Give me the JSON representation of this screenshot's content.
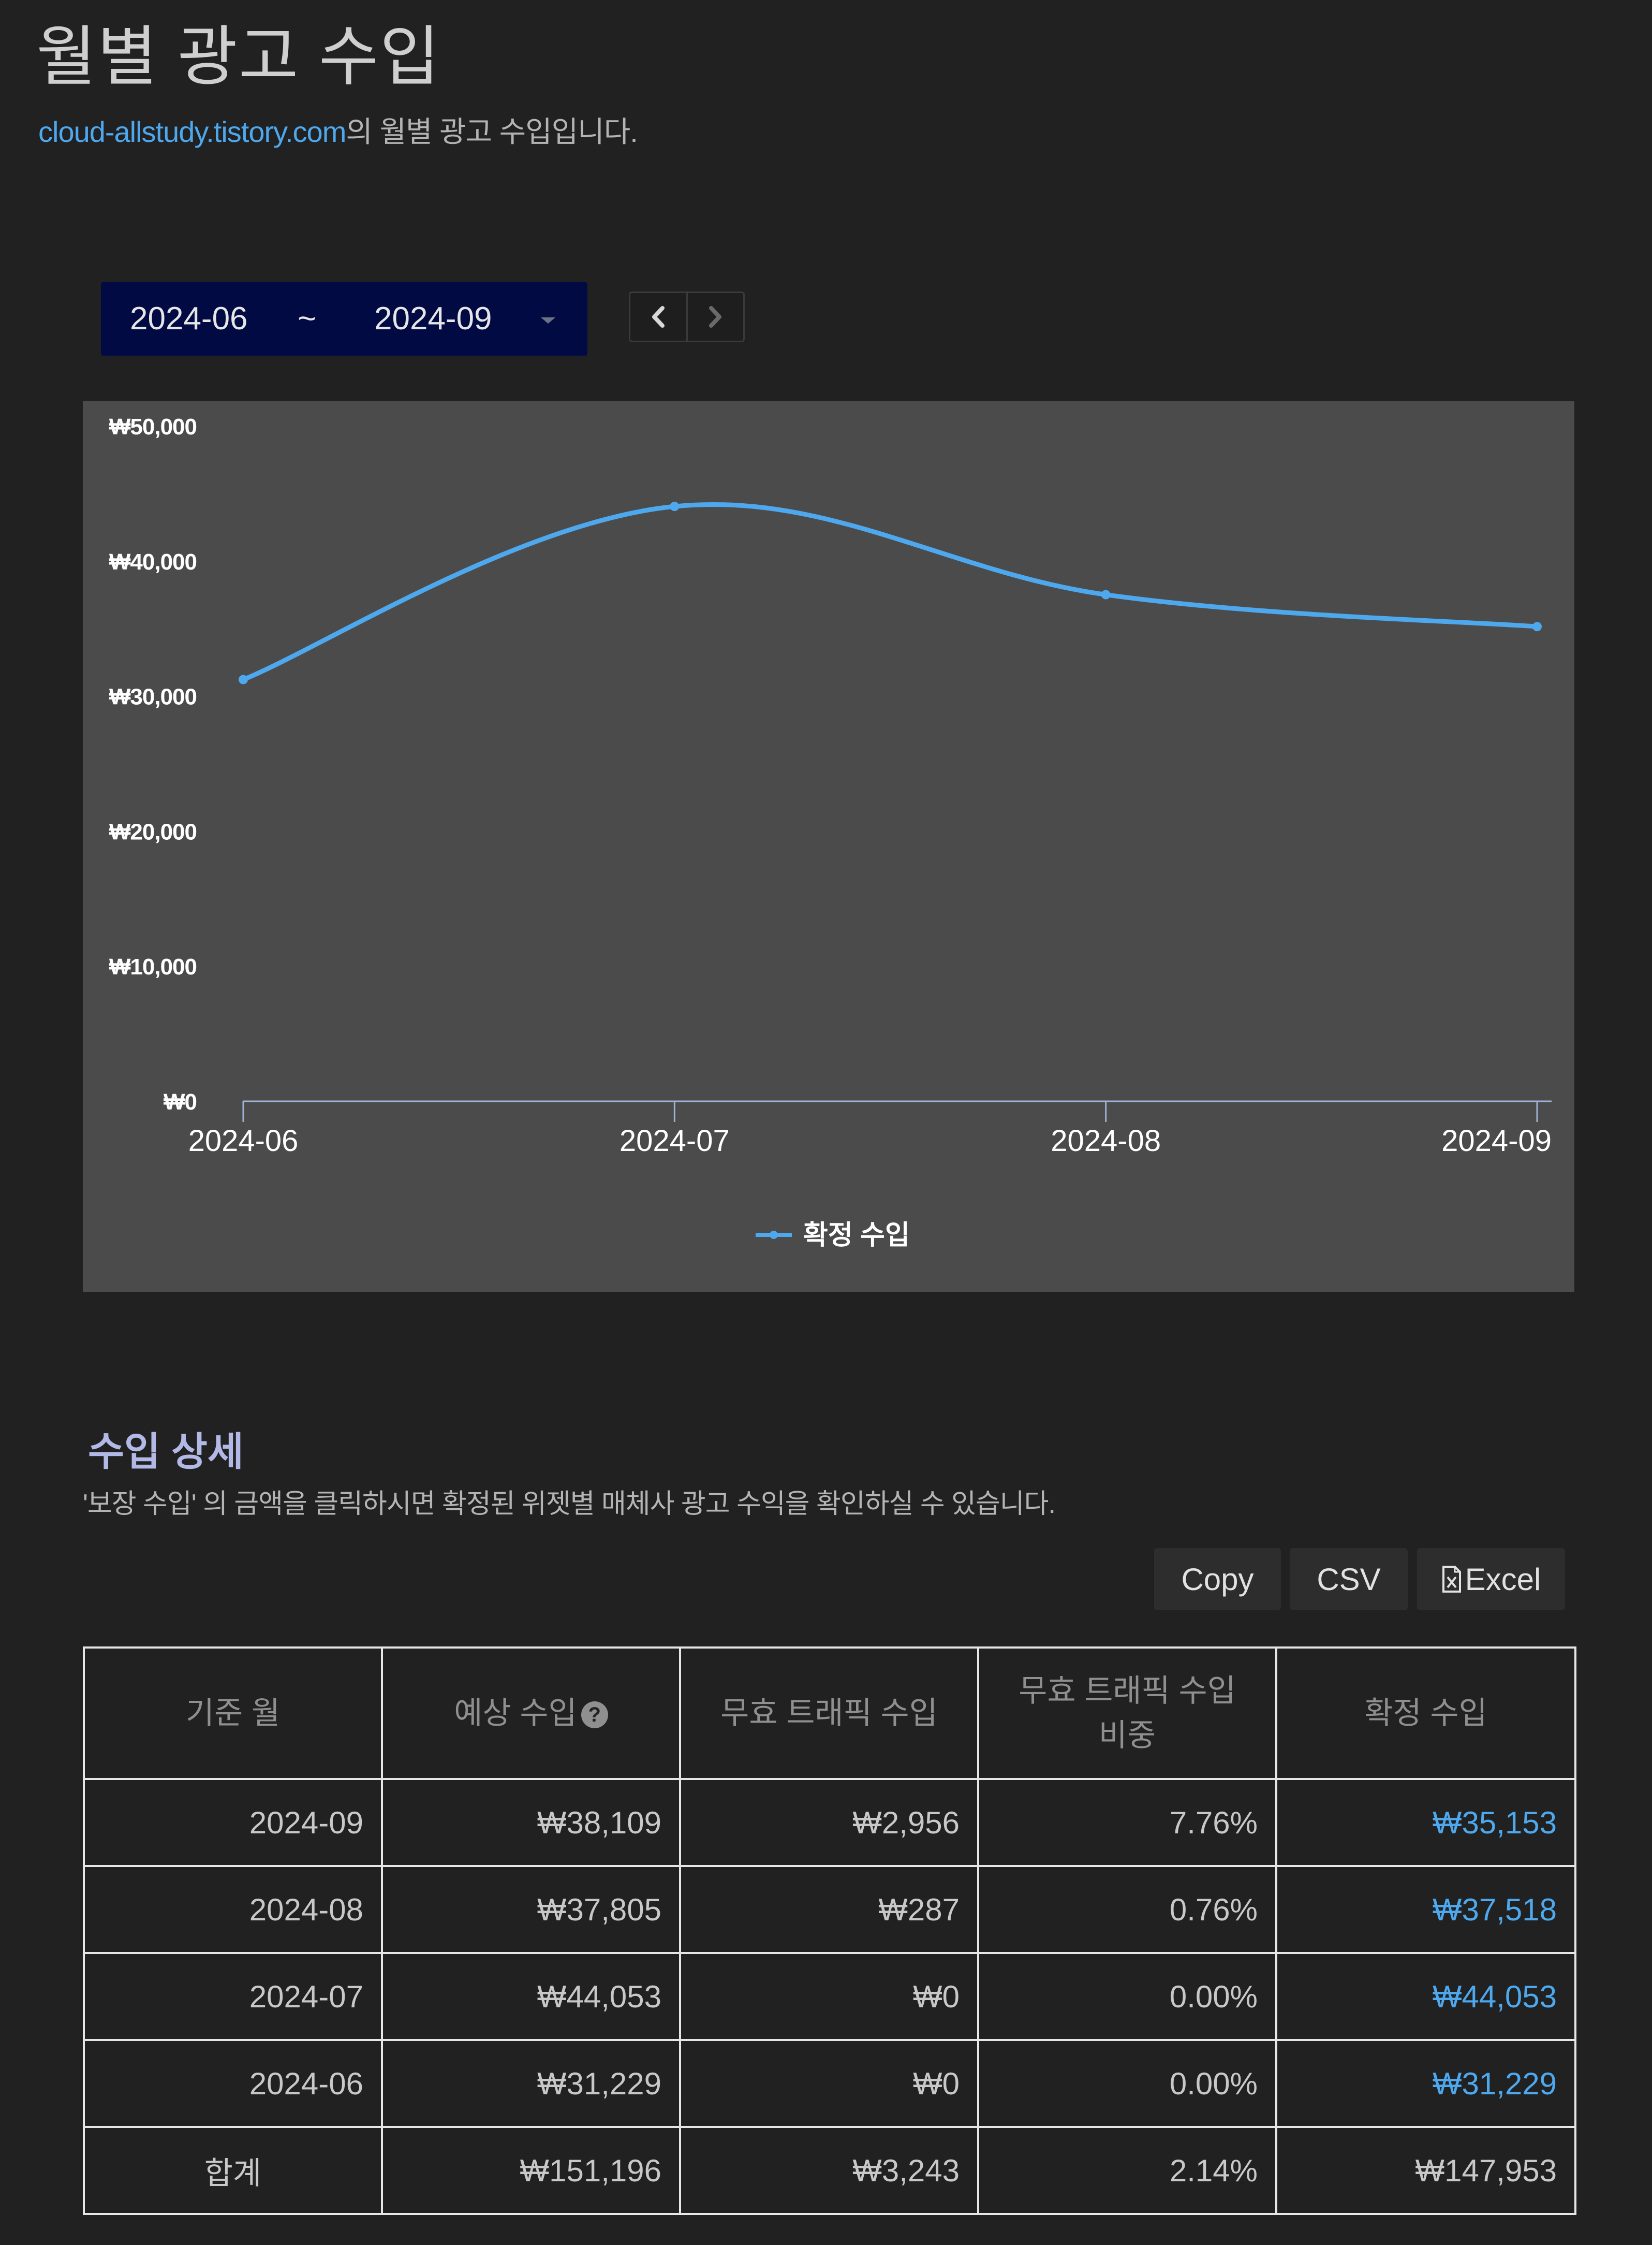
{
  "header": {
    "title": "월별 광고 수입",
    "site_link": "cloud-allstudy.tistory.com",
    "subtitle_suffix": "의 월별 광고 수입입니다."
  },
  "date_range": {
    "start": "2024-06",
    "separator": "~",
    "end": "2024-09"
  },
  "pager": {
    "prev_icon": "chevron-left-icon",
    "next_icon": "chevron-right-icon"
  },
  "chart_data": {
    "type": "line",
    "title": "",
    "xlabel": "",
    "ylabel": "",
    "x": [
      "2024-06",
      "2024-07",
      "2024-08",
      "2024-09"
    ],
    "series": [
      {
        "name": "확정 수입",
        "values": [
          31229,
          44053,
          37518,
          35153
        ],
        "color": "#4ea8ee"
      }
    ],
    "y_ticks": [
      "₩0",
      "₩10,000",
      "₩20,000",
      "₩30,000",
      "₩40,000",
      "₩50,000"
    ],
    "ylim": [
      0,
      50000
    ],
    "grid": false,
    "legend_position": "bottom-center",
    "smooth": true
  },
  "section": {
    "title": "수입 상세",
    "description": "'보장 수입' 의 금액을 클릭하시면 확정된 위젯별 매체사 광고 수익을 확인하실 수 있습니다."
  },
  "export_buttons": {
    "copy": "Copy",
    "csv": "CSV",
    "excel": "Excel"
  },
  "table": {
    "headers": {
      "month": "기준 월",
      "expected": "예상 수입",
      "invalid": "무효 트래픽 수입",
      "ratio_line1": "무효 트래픽 수입",
      "ratio_line2": "비중",
      "confirmed": "확정 수입"
    },
    "rows": [
      {
        "month": "2024-09",
        "expected": "₩38,109",
        "invalid": "₩2,956",
        "ratio": "7.76%",
        "confirmed": "₩35,153"
      },
      {
        "month": "2024-08",
        "expected": "₩37,805",
        "invalid": "₩287",
        "ratio": "0.76%",
        "confirmed": "₩37,518"
      },
      {
        "month": "2024-07",
        "expected": "₩44,053",
        "invalid": "₩0",
        "ratio": "0.00%",
        "confirmed": "₩44,053"
      },
      {
        "month": "2024-06",
        "expected": "₩31,229",
        "invalid": "₩0",
        "ratio": "0.00%",
        "confirmed": "₩31,229"
      }
    ],
    "total": {
      "month": "합계",
      "expected": "₩151,196",
      "invalid": "₩3,243",
      "ratio": "2.14%",
      "confirmed": "₩147,953"
    }
  },
  "colors": {
    "background": "#212121",
    "accent_link": "#4ea8ee",
    "chart_panel": "#4b4b4b",
    "date_picker": "#020a44",
    "section_title": "#b2b9e6"
  }
}
